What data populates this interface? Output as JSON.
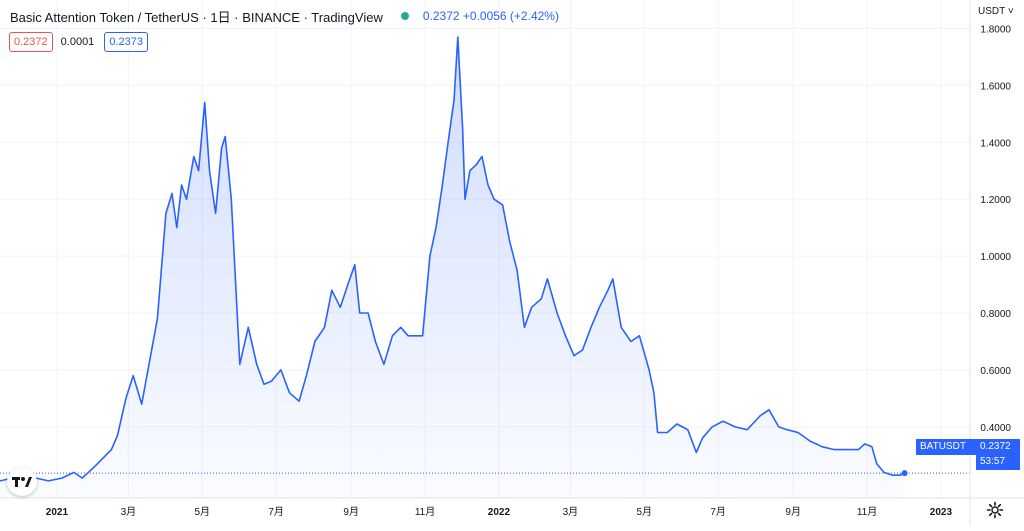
{
  "header": {
    "title": "Basic Attention Token / TetherUS · 1日 · BINANCE · TradingView",
    "quote": "0.2372 +0.0056 (+2.42%)"
  },
  "price_panel": {
    "sell": "0.2372",
    "spread": "0.0001",
    "buy": "0.2373"
  },
  "currency_label": "USDT ˅",
  "price_tags": {
    "symbol": "BATUSDT",
    "last_price": "0.2372",
    "countdown": "53:57"
  },
  "colors": {
    "line": "#2962ff",
    "area_top": "#2962ff",
    "grid": "#f0f3fa",
    "axis_text": "#131722"
  },
  "icons": {
    "logo": "tradingview-logo-icon",
    "settings": "gear-icon",
    "live": "status-dot-icon"
  },
  "chart_data": {
    "type": "area",
    "title": "Basic Attention Token / TetherUS · 1日 · BINANCE · TradingView",
    "ylabel": "USDT",
    "xlabel": "",
    "ylim": [
      0.15,
      1.9
    ],
    "xlim": [
      "2020-11-15",
      "2023-01-25"
    ],
    "grid": true,
    "y_ticks": [
      "0.4000",
      "0.6000",
      "0.8000",
      "1.0000",
      "1.2000",
      "1.4000",
      "1.6000",
      "1.8000"
    ],
    "x_ticks": [
      {
        "date": "2021-01-01",
        "label": "2021",
        "bold": true
      },
      {
        "date": "2021-03-01",
        "label": "3月",
        "bold": false
      },
      {
        "date": "2021-05-01",
        "label": "5月",
        "bold": false
      },
      {
        "date": "2021-07-01",
        "label": "7月",
        "bold": false
      },
      {
        "date": "2021-09-01",
        "label": "9月",
        "bold": false
      },
      {
        "date": "2021-11-01",
        "label": "11月",
        "bold": false
      },
      {
        "date": "2022-01-01",
        "label": "2022",
        "bold": true
      },
      {
        "date": "2022-03-01",
        "label": "3月",
        "bold": false
      },
      {
        "date": "2022-05-01",
        "label": "5月",
        "bold": false
      },
      {
        "date": "2022-07-01",
        "label": "7月",
        "bold": false
      },
      {
        "date": "2022-09-01",
        "label": "9月",
        "bold": false
      },
      {
        "date": "2022-11-01",
        "label": "11月",
        "bold": false
      },
      {
        "date": "2023-01-01",
        "label": "2023",
        "bold": true
      }
    ],
    "last_value": 0.2372,
    "series": [
      {
        "name": "BATUSDT",
        "x": [
          "2020-11-15",
          "2020-11-25",
          "2020-12-05",
          "2020-12-15",
          "2020-12-25",
          "2021-01-05",
          "2021-01-15",
          "2021-01-22",
          "2021-02-01",
          "2021-02-08",
          "2021-02-15",
          "2021-02-20",
          "2021-02-27",
          "2021-03-05",
          "2021-03-12",
          "2021-03-18",
          "2021-03-25",
          "2021-04-01",
          "2021-04-06",
          "2021-04-10",
          "2021-04-14",
          "2021-04-18",
          "2021-04-24",
          "2021-04-28",
          "2021-05-03",
          "2021-05-07",
          "2021-05-12",
          "2021-05-17",
          "2021-05-20",
          "2021-05-25",
          "2021-06-01",
          "2021-06-08",
          "2021-06-15",
          "2021-06-21",
          "2021-06-27",
          "2021-07-05",
          "2021-07-12",
          "2021-07-20",
          "2021-07-26",
          "2021-08-02",
          "2021-08-10",
          "2021-08-16",
          "2021-08-23",
          "2021-08-30",
          "2021-09-04",
          "2021-09-08",
          "2021-09-15",
          "2021-09-21",
          "2021-09-28",
          "2021-10-05",
          "2021-10-12",
          "2021-10-18",
          "2021-10-25",
          "2021-10-30",
          "2021-11-05",
          "2021-11-10",
          "2021-11-15",
          "2021-11-20",
          "2021-11-25",
          "2021-11-28",
          "2021-12-02",
          "2021-12-04",
          "2021-12-08",
          "2021-12-13",
          "2021-12-18",
          "2021-12-23",
          "2021-12-28",
          "2022-01-04",
          "2022-01-10",
          "2022-01-16",
          "2022-01-22",
          "2022-01-28",
          "2022-02-05",
          "2022-02-10",
          "2022-02-18",
          "2022-02-25",
          "2022-03-04",
          "2022-03-11",
          "2022-03-18",
          "2022-03-25",
          "2022-04-01",
          "2022-04-05",
          "2022-04-12",
          "2022-04-20",
          "2022-04-27",
          "2022-05-05",
          "2022-05-09",
          "2022-05-12",
          "2022-05-20",
          "2022-05-28",
          "2022-06-06",
          "2022-06-13",
          "2022-06-18",
          "2022-06-26",
          "2022-07-05",
          "2022-07-15",
          "2022-07-25",
          "2022-08-05",
          "2022-08-12",
          "2022-08-20",
          "2022-08-27",
          "2022-09-05",
          "2022-09-15",
          "2022-09-25",
          "2022-10-05",
          "2022-10-15",
          "2022-10-25",
          "2022-10-30",
          "2022-11-05",
          "2022-11-09",
          "2022-11-15",
          "2022-11-22",
          "2022-11-28",
          "2022-12-02"
        ],
        "values": [
          0.21,
          0.22,
          0.23,
          0.22,
          0.21,
          0.22,
          0.24,
          0.22,
          0.26,
          0.29,
          0.32,
          0.37,
          0.5,
          0.58,
          0.48,
          0.62,
          0.78,
          1.15,
          1.22,
          1.1,
          1.25,
          1.2,
          1.35,
          1.3,
          1.54,
          1.3,
          1.15,
          1.38,
          1.42,
          1.2,
          0.62,
          0.75,
          0.62,
          0.55,
          0.56,
          0.6,
          0.52,
          0.49,
          0.58,
          0.7,
          0.75,
          0.88,
          0.82,
          0.91,
          0.97,
          0.8,
          0.8,
          0.7,
          0.62,
          0.72,
          0.75,
          0.72,
          0.72,
          0.72,
          1.0,
          1.1,
          1.24,
          1.4,
          1.55,
          1.77,
          1.45,
          1.2,
          1.3,
          1.32,
          1.35,
          1.25,
          1.2,
          1.18,
          1.05,
          0.95,
          0.75,
          0.82,
          0.85,
          0.92,
          0.8,
          0.72,
          0.65,
          0.67,
          0.75,
          0.82,
          0.88,
          0.92,
          0.75,
          0.7,
          0.72,
          0.6,
          0.52,
          0.38,
          0.38,
          0.41,
          0.39,
          0.31,
          0.36,
          0.4,
          0.42,
          0.4,
          0.39,
          0.44,
          0.46,
          0.4,
          0.39,
          0.38,
          0.35,
          0.33,
          0.32,
          0.32,
          0.32,
          0.34,
          0.33,
          0.27,
          0.24,
          0.23,
          0.23,
          0.2372
        ]
      }
    ]
  }
}
